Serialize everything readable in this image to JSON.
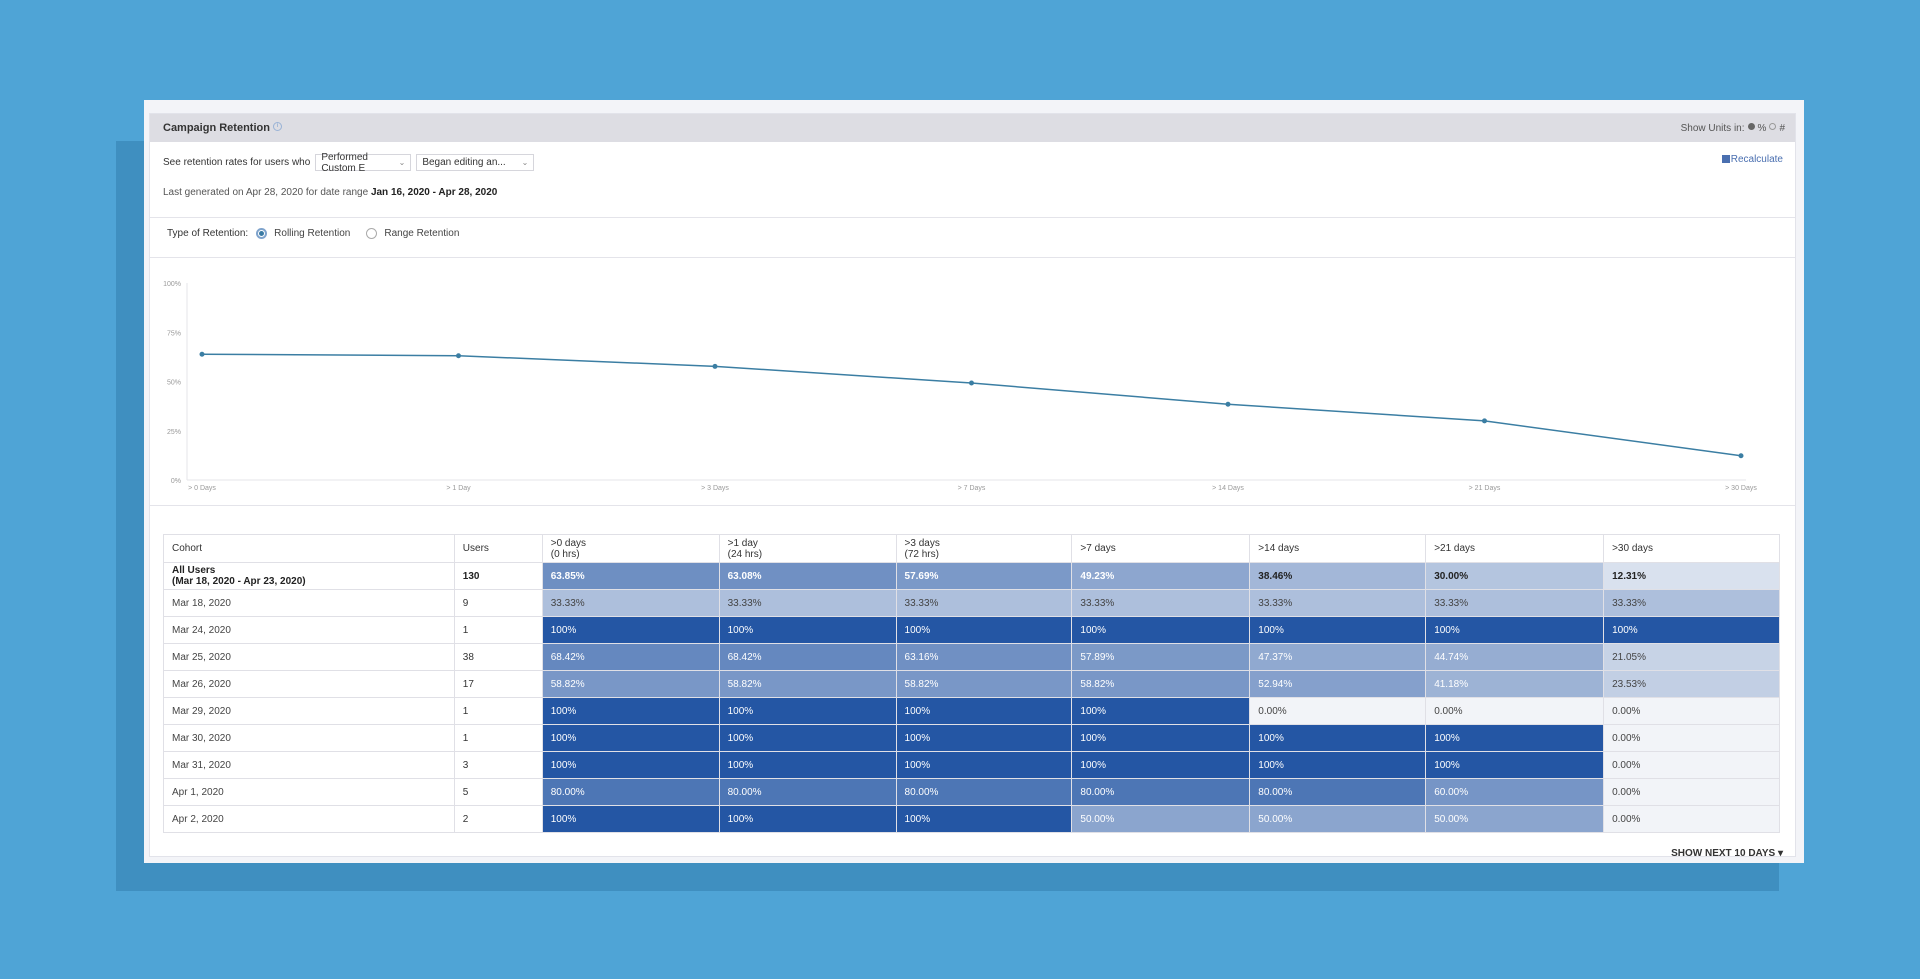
{
  "header": {
    "title": "Campaign Retention",
    "info_icon": "info-circle-icon",
    "units_label": "Show Units in:",
    "unit_options": [
      "%",
      "#"
    ],
    "selected_unit": "%"
  },
  "controls": {
    "prompt": "See retention rates for users who",
    "select1": "Performed Custom E",
    "select2": "Began editing an...",
    "recalculate": "Recalculate",
    "generated_prefix": "Last generated on Apr 28, 2020 for date range",
    "date_range": "Jan 16, 2020 - Apr 28, 2020"
  },
  "retention_type": {
    "label": "Type of Retention:",
    "options": [
      "Rolling Retention",
      "Range Retention"
    ],
    "selected": "Rolling Retention"
  },
  "chart_data": {
    "type": "line",
    "categories": [
      "> 0 Days",
      "> 1 Day",
      "> 3 Days",
      "> 7 Days",
      "> 14 Days",
      "> 21 Days",
      "> 30 Days"
    ],
    "values": [
      63.85,
      63.08,
      57.69,
      49.23,
      38.46,
      30.0,
      12.31
    ],
    "yticks": [
      "0%",
      "25%",
      "50%",
      "75%",
      "100%"
    ],
    "ylim": [
      0,
      100
    ],
    "color": "#3b7ea3",
    "grid": false
  },
  "table": {
    "headers": [
      "Cohort",
      "Users",
      ">0 days\n(0 hrs)",
      ">1 day\n(24 hrs)",
      ">3 days\n(72 hrs)",
      ">7 days",
      ">14 days",
      ">21 days",
      ">30 days"
    ],
    "scale_colors": {
      "low": "#f2f4f8",
      "high": "#2456a4"
    },
    "rows": [
      {
        "cohort": "All Users\n(Mar 18, 2020 - Apr 23, 2020)",
        "users": "130",
        "values": [
          "63.85%",
          "63.08%",
          "57.69%",
          "49.23%",
          "38.46%",
          "30.00%",
          "12.31%"
        ]
      },
      {
        "cohort": "Mar 18, 2020",
        "users": "9",
        "values": [
          "33.33%",
          "33.33%",
          "33.33%",
          "33.33%",
          "33.33%",
          "33.33%",
          "33.33%"
        ]
      },
      {
        "cohort": "Mar 24, 2020",
        "users": "1",
        "values": [
          "100%",
          "100%",
          "100%",
          "100%",
          "100%",
          "100%",
          "100%"
        ]
      },
      {
        "cohort": "Mar 25, 2020",
        "users": "38",
        "values": [
          "68.42%",
          "68.42%",
          "63.16%",
          "57.89%",
          "47.37%",
          "44.74%",
          "21.05%"
        ]
      },
      {
        "cohort": "Mar 26, 2020",
        "users": "17",
        "values": [
          "58.82%",
          "58.82%",
          "58.82%",
          "58.82%",
          "52.94%",
          "41.18%",
          "23.53%"
        ]
      },
      {
        "cohort": "Mar 29, 2020",
        "users": "1",
        "values": [
          "100%",
          "100%",
          "100%",
          "100%",
          "0.00%",
          "0.00%",
          "0.00%"
        ]
      },
      {
        "cohort": "Mar 30, 2020",
        "users": "1",
        "values": [
          "100%",
          "100%",
          "100%",
          "100%",
          "100%",
          "100%",
          "0.00%"
        ]
      },
      {
        "cohort": "Mar 31, 2020",
        "users": "3",
        "values": [
          "100%",
          "100%",
          "100%",
          "100%",
          "100%",
          "100%",
          "0.00%"
        ]
      },
      {
        "cohort": "Apr 1, 2020",
        "users": "5",
        "values": [
          "80.00%",
          "80.00%",
          "80.00%",
          "80.00%",
          "80.00%",
          "60.00%",
          "0.00%"
        ]
      },
      {
        "cohort": "Apr 2, 2020",
        "users": "2",
        "values": [
          "100%",
          "100%",
          "100%",
          "50.00%",
          "50.00%",
          "50.00%",
          "0.00%"
        ]
      }
    ]
  },
  "show_more": "SHOW NEXT 10 DAYS ▾"
}
